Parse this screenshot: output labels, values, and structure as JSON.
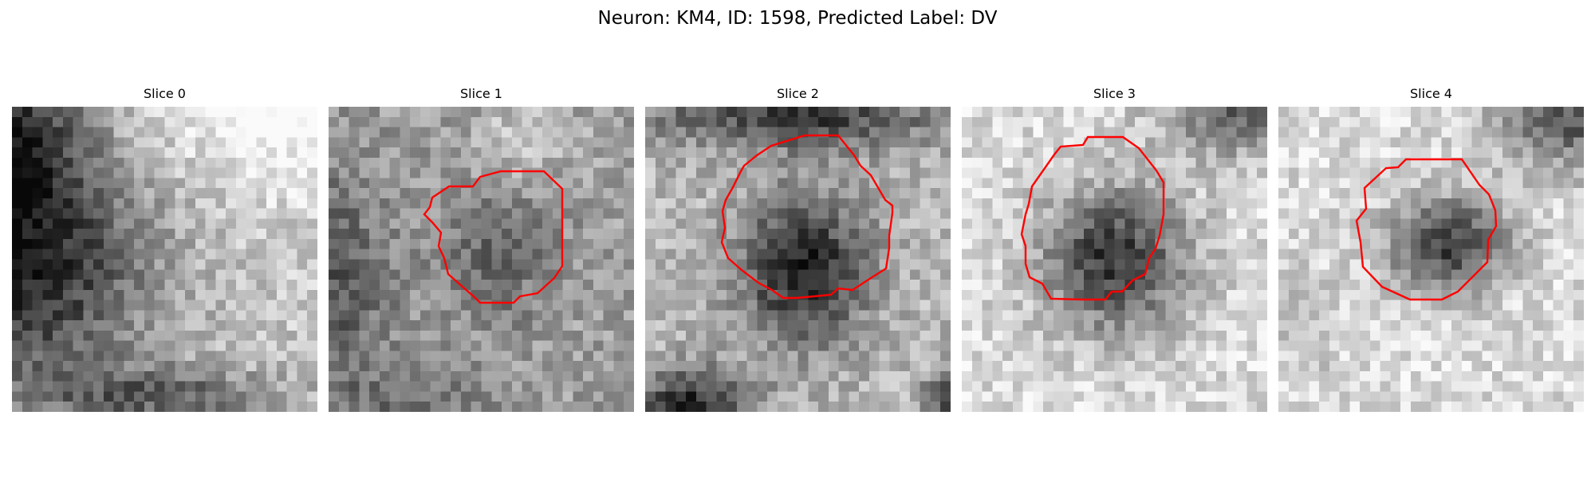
{
  "figure": {
    "title": "Neuron: KM4, ID: 1598, Predicted Label: DV"
  },
  "contour_color": "#ff0000",
  "colormap": "gray",
  "slices": [
    {
      "label": "Slice 0",
      "has_contour": false
    },
    {
      "label": "Slice 1",
      "has_contour": true
    },
    {
      "label": "Slice 2",
      "has_contour": true
    },
    {
      "label": "Slice 3",
      "has_contour": true
    },
    {
      "label": "Slice 4",
      "has_contour": true
    }
  ]
}
